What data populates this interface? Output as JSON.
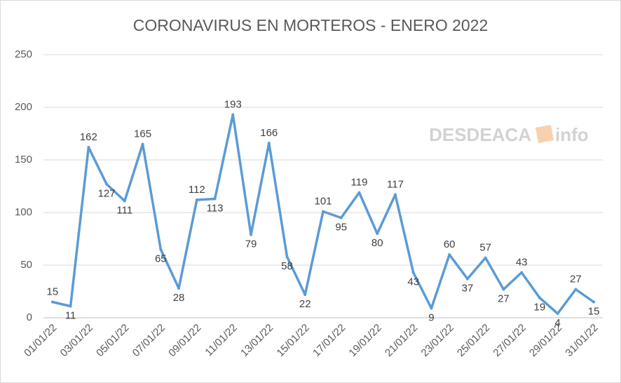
{
  "chart_data": {
    "type": "line",
    "title": "CORONAVIRUS EN MORTEROS - ENERO 2022",
    "watermark": {
      "left": "DESDEACA",
      "right": "info"
    },
    "categories": [
      "01/01/22",
      null,
      "03/01/22",
      null,
      "05/01/22",
      null,
      "07/01/22",
      null,
      "09/01/22",
      null,
      "11/01/22",
      null,
      "13/01/22",
      null,
      "15/01/22",
      null,
      "17/01/22",
      null,
      "19/01/22",
      null,
      "21/01/22",
      null,
      "23/01/22",
      null,
      "25/01/22",
      null,
      "27/01/22",
      null,
      "29/01/22",
      null,
      "31/01/22"
    ],
    "series": [
      {
        "color": "#5b9bd5",
        "values": [
          15,
          11,
          162,
          127,
          111,
          165,
          65,
          28,
          112,
          113,
          193,
          79,
          166,
          58,
          22,
          101,
          95,
          119,
          80,
          117,
          43,
          9,
          60,
          37,
          57,
          27,
          43,
          19,
          4,
          27,
          15
        ]
      }
    ],
    "ylim": [
      0,
      250
    ],
    "yticks": [
      0,
      50,
      100,
      150,
      200,
      250
    ],
    "grid": true
  }
}
